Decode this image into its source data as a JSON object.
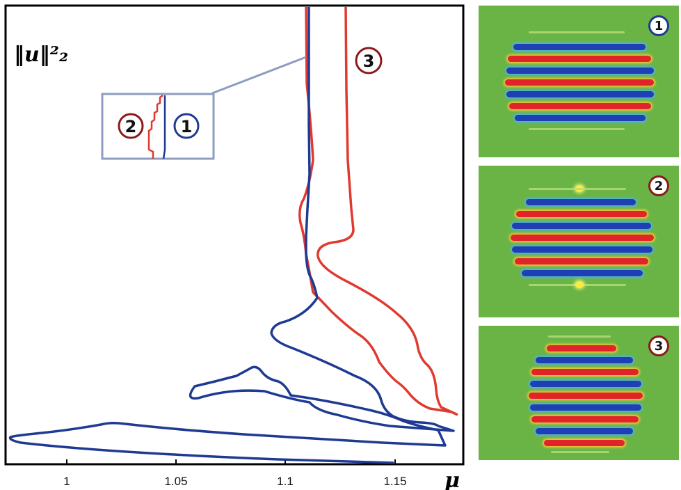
{
  "chart_data": {
    "type": "line",
    "xlabel": "μ",
    "ylabel": "‖u‖²₂",
    "x_ticks": [
      "1",
      "1.05",
      "1.1",
      "1.15"
    ],
    "xlim": [
      0.975,
      1.18
    ],
    "series": [
      {
        "id": "branch-1",
        "color": "#1f3a93"
      },
      {
        "id": "branch-2",
        "color": "#e03a2f"
      },
      {
        "id": "branch-3",
        "color": "#e03a2f"
      }
    ]
  },
  "labels": {
    "branch_3": "3",
    "inset_left": "2",
    "inset_right": "1"
  },
  "panels": [
    {
      "label": "1",
      "badge_color": "#1f3a93"
    },
    {
      "label": "2",
      "badge_color": "#8b1a1a"
    },
    {
      "label": "3",
      "badge_color": "#8b1a1a"
    }
  ],
  "colors": {
    "blue_curve": "#1f3a93",
    "red_curve": "#e03a2f",
    "inset_box": "#8d9cc0",
    "panel_background": "#6ab446"
  }
}
